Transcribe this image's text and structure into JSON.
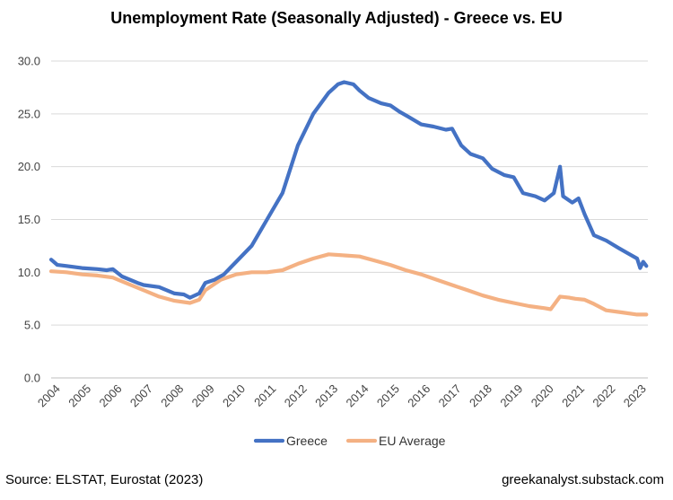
{
  "chart_data": {
    "type": "line",
    "title": "Unemployment Rate (Seasonally Adjusted) - Greece vs. EU",
    "xlabel": "",
    "ylabel": "",
    "xlim": [
      2004,
      2023.35
    ],
    "ylim": [
      0,
      30
    ],
    "yticks": [
      "0.0",
      "5.0",
      "10.0",
      "15.0",
      "20.0",
      "25.0",
      "30.0"
    ],
    "xticks": [
      "2004",
      "2005",
      "2006",
      "2007",
      "2008",
      "2009",
      "2010",
      "2011",
      "2012",
      "2013",
      "2014",
      "2015",
      "2016",
      "2017",
      "2018",
      "2019",
      "2020",
      "2021",
      "2022",
      "2023"
    ],
    "grid": "horizontal",
    "legend_position": "bottom",
    "series": [
      {
        "name": "Greece",
        "color": "#4472C4",
        "points": [
          [
            2004.0,
            11.2
          ],
          [
            2004.2,
            10.7
          ],
          [
            2004.5,
            10.6
          ],
          [
            2005.0,
            10.4
          ],
          [
            2005.5,
            10.3
          ],
          [
            2005.8,
            10.2
          ],
          [
            2006.0,
            10.3
          ],
          [
            2006.3,
            9.6
          ],
          [
            2006.8,
            9.0
          ],
          [
            2007.0,
            8.8
          ],
          [
            2007.5,
            8.6
          ],
          [
            2008.0,
            8.0
          ],
          [
            2008.3,
            7.9
          ],
          [
            2008.5,
            7.6
          ],
          [
            2008.8,
            8.0
          ],
          [
            2009.0,
            9.0
          ],
          [
            2009.3,
            9.3
          ],
          [
            2009.6,
            9.8
          ],
          [
            2010.0,
            11.0
          ],
          [
            2010.5,
            12.5
          ],
          [
            2011.0,
            15.0
          ],
          [
            2011.5,
            17.5
          ],
          [
            2012.0,
            22.0
          ],
          [
            2012.5,
            25.0
          ],
          [
            2013.0,
            27.0
          ],
          [
            2013.3,
            27.8
          ],
          [
            2013.5,
            28.0
          ],
          [
            2013.8,
            27.8
          ],
          [
            2014.0,
            27.2
          ],
          [
            2014.3,
            26.5
          ],
          [
            2014.7,
            26.0
          ],
          [
            2015.0,
            25.8
          ],
          [
            2015.3,
            25.2
          ],
          [
            2015.6,
            24.7
          ],
          [
            2016.0,
            24.0
          ],
          [
            2016.4,
            23.8
          ],
          [
            2016.8,
            23.5
          ],
          [
            2017.0,
            23.6
          ],
          [
            2017.3,
            22.0
          ],
          [
            2017.6,
            21.2
          ],
          [
            2018.0,
            20.8
          ],
          [
            2018.3,
            19.8
          ],
          [
            2018.7,
            19.2
          ],
          [
            2019.0,
            19.0
          ],
          [
            2019.3,
            17.5
          ],
          [
            2019.7,
            17.2
          ],
          [
            2020.0,
            16.8
          ],
          [
            2020.3,
            17.5
          ],
          [
            2020.5,
            20.0
          ],
          [
            2020.6,
            17.2
          ],
          [
            2020.9,
            16.6
          ],
          [
            2021.1,
            17.0
          ],
          [
            2021.3,
            15.5
          ],
          [
            2021.6,
            13.5
          ],
          [
            2022.0,
            13.0
          ],
          [
            2022.4,
            12.3
          ],
          [
            2022.7,
            11.8
          ],
          [
            2023.0,
            11.3
          ],
          [
            2023.1,
            10.4
          ],
          [
            2023.2,
            11.0
          ],
          [
            2023.3,
            10.6
          ]
        ]
      },
      {
        "name": "EU Average",
        "color": "#F4B183",
        "points": [
          [
            2004.0,
            10.1
          ],
          [
            2004.5,
            10.0
          ],
          [
            2005.0,
            9.8
          ],
          [
            2005.5,
            9.7
          ],
          [
            2006.0,
            9.5
          ],
          [
            2006.5,
            8.9
          ],
          [
            2007.0,
            8.3
          ],
          [
            2007.5,
            7.7
          ],
          [
            2008.0,
            7.3
          ],
          [
            2008.5,
            7.1
          ],
          [
            2008.8,
            7.4
          ],
          [
            2009.0,
            8.3
          ],
          [
            2009.5,
            9.3
          ],
          [
            2010.0,
            9.8
          ],
          [
            2010.5,
            10.0
          ],
          [
            2011.0,
            10.0
          ],
          [
            2011.5,
            10.2
          ],
          [
            2012.0,
            10.8
          ],
          [
            2012.5,
            11.3
          ],
          [
            2013.0,
            11.7
          ],
          [
            2013.5,
            11.6
          ],
          [
            2014.0,
            11.5
          ],
          [
            2014.5,
            11.1
          ],
          [
            2015.0,
            10.7
          ],
          [
            2015.5,
            10.2
          ],
          [
            2016.0,
            9.8
          ],
          [
            2016.5,
            9.3
          ],
          [
            2017.0,
            8.8
          ],
          [
            2017.5,
            8.3
          ],
          [
            2018.0,
            7.8
          ],
          [
            2018.5,
            7.4
          ],
          [
            2019.0,
            7.1
          ],
          [
            2019.5,
            6.8
          ],
          [
            2020.0,
            6.6
          ],
          [
            2020.2,
            6.5
          ],
          [
            2020.5,
            7.7
          ],
          [
            2020.8,
            7.6
          ],
          [
            2021.0,
            7.5
          ],
          [
            2021.3,
            7.4
          ],
          [
            2021.6,
            7.0
          ],
          [
            2022.0,
            6.4
          ],
          [
            2022.5,
            6.2
          ],
          [
            2023.0,
            6.0
          ],
          [
            2023.3,
            6.0
          ]
        ]
      }
    ]
  },
  "footer": {
    "source": "Source: ELSTAT, Eurostat (2023)",
    "credit": "greekanalyst.substack.com"
  }
}
